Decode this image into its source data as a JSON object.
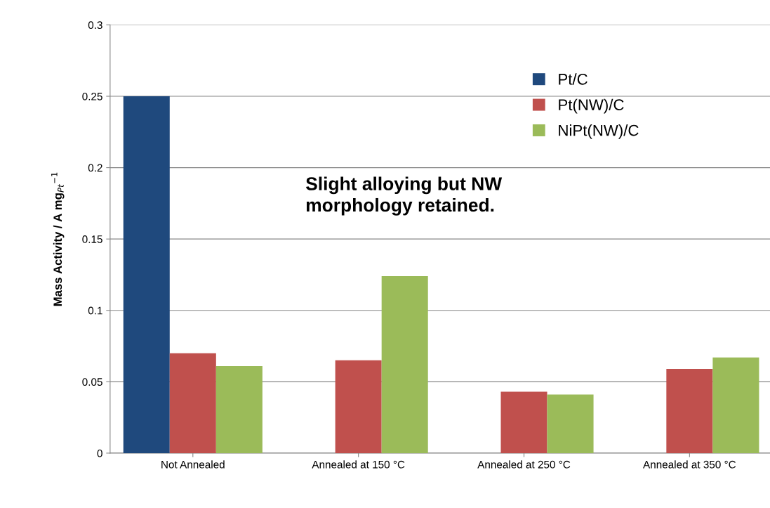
{
  "chart_data": {
    "type": "bar",
    "ylabel": "Mass Activity / A mg$_{Pt}$$^{−1}$",
    "categories": [
      "Not Annealed",
      "Annealed at 150 °C",
      "Annealed at 250 °C",
      "Annealed at 350 °C"
    ],
    "series": [
      {
        "name": "Pt/C",
        "color": "#1f497d",
        "values": [
          0.25,
          null,
          null,
          null
        ]
      },
      {
        "name": "Pt(NW)/C",
        "color": "#c0504d",
        "values": [
          0.07,
          0.065,
          0.043,
          0.059
        ]
      },
      {
        "name": "NiPt(NW)/C",
        "color": "#9bbb59",
        "values": [
          0.061,
          0.124,
          0.041,
          0.067
        ]
      }
    ],
    "ylim": [
      0,
      0.3
    ],
    "yticks": [
      0,
      0.05,
      0.1,
      0.15,
      0.2,
      0.25,
      0.3
    ],
    "grid": "y",
    "legend": "top right",
    "annotations": [
      "Slight alloying but NW morphology retained."
    ]
  }
}
